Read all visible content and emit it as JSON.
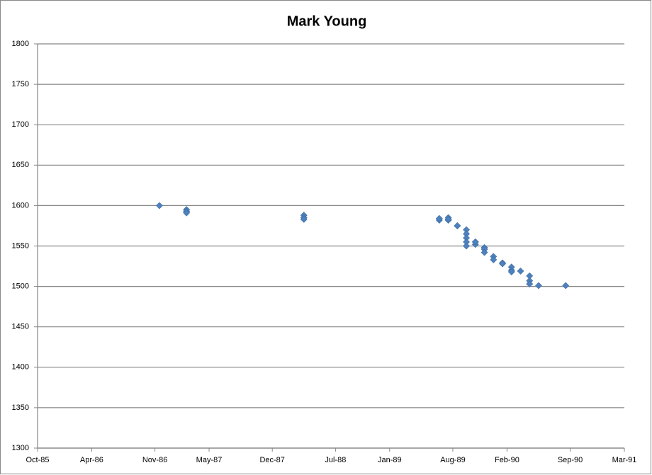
{
  "chart_data": {
    "type": "scatter",
    "title": "Mark Young",
    "series": [
      {
        "color": "#4f81bd",
        "x": [
          "1986-11",
          "1987-02",
          "1987-02",
          "1987-02",
          "1988-03",
          "1988-03",
          "1988-03",
          "1989-06",
          "1989-06",
          "1989-07",
          "1989-07",
          "1989-07",
          "1989-07",
          "1989-08",
          "1989-08",
          "1989-09",
          "1989-09",
          "1989-09",
          "1989-09",
          "1989-09",
          "1989-10",
          "1989-10",
          "1989-10",
          "1989-11",
          "1989-11",
          "1989-11",
          "1989-12",
          "1989-12",
          "1990-01",
          "1990-01",
          "1990-02",
          "1990-02",
          "1990-02",
          "1990-03",
          "1990-04",
          "1990-04",
          "1990-04",
          "1990-05",
          "1990-08"
        ],
        "values": [
          1600,
          1595,
          1593,
          1591,
          1588,
          1585,
          1583,
          1582,
          1584,
          1583,
          1582,
          1585,
          1583,
          1575,
          1575,
          1570,
          1565,
          1560,
          1555,
          1550,
          1555,
          1552,
          1555,
          1548,
          1546,
          1542,
          1537,
          1533,
          1529,
          1528,
          1524,
          1520,
          1518,
          1519,
          1513,
          1507,
          1503,
          1501,
          1501
        ]
      }
    ],
    "xlim": [
      "1985-10",
      "1991-03"
    ],
    "xticks": [
      {
        "value": "1985-10",
        "label": "Oct-85"
      },
      {
        "value": "1986-04",
        "label": "Apr-86"
      },
      {
        "value": "1986-11",
        "label": "Nov-86"
      },
      {
        "value": "1987-05",
        "label": "May-87"
      },
      {
        "value": "1987-12",
        "label": "Dec-87"
      },
      {
        "value": "1988-07",
        "label": "Jul-88"
      },
      {
        "value": "1989-01",
        "label": "Jan-89"
      },
      {
        "value": "1989-08",
        "label": "Aug-89"
      },
      {
        "value": "1990-02",
        "label": "Feb-90"
      },
      {
        "value": "1990-09",
        "label": "Sep-90"
      },
      {
        "value": "1991-03",
        "label": "Mar-91"
      }
    ],
    "ylim": [
      1300,
      1800
    ],
    "yticks": [
      1300,
      1350,
      1400,
      1450,
      1500,
      1550,
      1600,
      1650,
      1700,
      1750,
      1800
    ],
    "grid": true
  }
}
